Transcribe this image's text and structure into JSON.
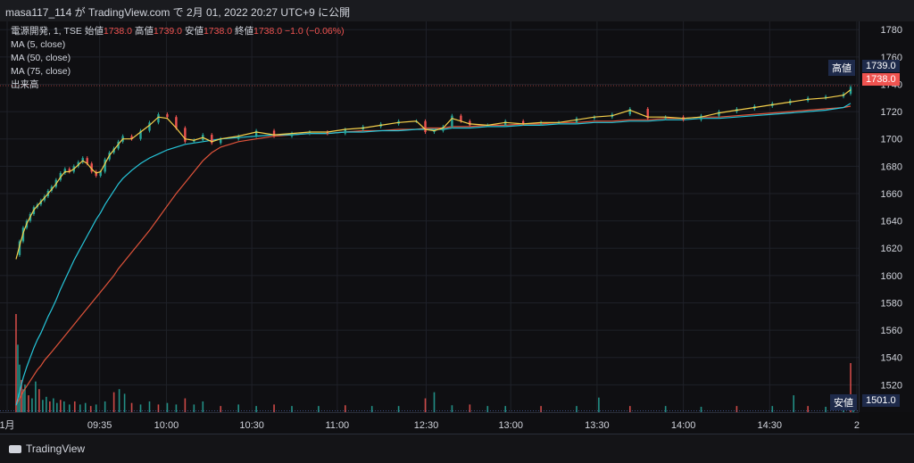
{
  "header": {
    "title": "masa117_114 が TradingView.com で 2月 01, 2022 20:27 UTC+9 に公開"
  },
  "legend": {
    "symbol": "電源開発, 1, TSE",
    "open_label": "始値",
    "open": "1738.0",
    "high_label": "高値",
    "high": "1739.0",
    "low_label": "安値",
    "low": "1738.0",
    "close_label": "終値",
    "close": "1738.0",
    "change": "−1.0 (−0.06%)",
    "ma5": "MA (5, close)",
    "ma50": "MA (50, close)",
    "ma75": "MA (75, close)",
    "volume": "出来高"
  },
  "right_labels": {
    "high_label": "高値",
    "high_value": "1739.0",
    "last_value": "1738.0",
    "low_label": "安値",
    "low_value": "1501.0"
  },
  "footer": {
    "brand": "TradingView"
  },
  "colors": {
    "up": "#26a69a",
    "down": "#ef5350",
    "ma5": "#f5d04b",
    "ma50": "#26c6da",
    "ma75": "#e0533a"
  },
  "chart_data": {
    "type": "line",
    "yticks": [
      1520,
      1540,
      1560,
      1580,
      1600,
      1620,
      1640,
      1660,
      1680,
      1700,
      1720,
      1740,
      1760,
      1780
    ],
    "ylim": [
      1500,
      1786
    ],
    "xlim": [
      0,
      950
    ],
    "xticks": [
      {
        "label": "1月",
        "t": 0
      },
      {
        "label": "09:35",
        "t": 104
      },
      {
        "label": "10:00",
        "t": 179
      },
      {
        "label": "10:30",
        "t": 275
      },
      {
        "label": "11:00",
        "t": 371
      },
      {
        "label": "12:30",
        "t": 471
      },
      {
        "label": "13:00",
        "t": 566
      },
      {
        "label": "13:30",
        "t": 663
      },
      {
        "label": "14:00",
        "t": 760
      },
      {
        "label": "14:30",
        "t": 857
      },
      {
        "label": "2",
        "t": 955
      }
    ],
    "price": {
      "t": [
        10,
        14,
        18,
        22,
        26,
        30,
        34,
        38,
        42,
        46,
        50,
        55,
        60,
        65,
        70,
        75,
        80,
        85,
        90,
        95,
        100,
        105,
        110,
        115,
        120,
        125,
        130,
        140,
        150,
        160,
        170,
        180,
        190,
        200,
        210,
        220,
        230,
        240,
        260,
        280,
        300,
        320,
        340,
        360,
        380,
        400,
        420,
        440,
        460,
        470,
        480,
        490,
        500,
        510,
        520,
        540,
        560,
        580,
        600,
        620,
        640,
        660,
        680,
        700,
        720,
        740,
        760,
        780,
        800,
        820,
        840,
        860,
        880,
        900,
        920,
        940,
        948
      ],
      "close": [
        1615,
        1625,
        1635,
        1640,
        1645,
        1650,
        1652,
        1655,
        1658,
        1662,
        1665,
        1670,
        1675,
        1678,
        1676,
        1680,
        1683,
        1686,
        1682,
        1676,
        1673,
        1676,
        1685,
        1690,
        1693,
        1698,
        1702,
        1700,
        1706,
        1712,
        1718,
        1716,
        1708,
        1698,
        1699,
        1703,
        1697,
        1700,
        1702,
        1706,
        1702,
        1704,
        1705,
        1704,
        1707,
        1709,
        1711,
        1713,
        1713,
        1705,
        1706,
        1709,
        1717,
        1713,
        1710,
        1710,
        1713,
        1711,
        1712,
        1712,
        1715,
        1716,
        1718,
        1722,
        1715,
        1716,
        1714,
        1717,
        1720,
        1722,
        1724,
        1726,
        1728,
        1730,
        1731,
        1733,
        1738
      ],
      "ma5": [
        1612,
        1622,
        1631,
        1638,
        1643,
        1648,
        1651,
        1654,
        1657,
        1660,
        1663,
        1667,
        1672,
        1676,
        1676,
        1678,
        1681,
        1684,
        1682,
        1678,
        1675,
        1676,
        1682,
        1688,
        1692,
        1696,
        1700,
        1700,
        1705,
        1710,
        1716,
        1715,
        1708,
        1700,
        1699,
        1701,
        1698,
        1700,
        1702,
        1705,
        1703,
        1704,
        1705,
        1705,
        1707,
        1708,
        1710,
        1712,
        1713,
        1707,
        1706,
        1708,
        1715,
        1713,
        1711,
        1710,
        1712,
        1711,
        1712,
        1712,
        1714,
        1716,
        1717,
        1721,
        1716,
        1716,
        1715,
        1716,
        1719,
        1721,
        1723,
        1725,
        1727,
        1729,
        1730,
        1732,
        1736
      ],
      "ma50": [
        1505,
        1515,
        1525,
        1533,
        1540,
        1547,
        1553,
        1558,
        1564,
        1570,
        1575,
        1582,
        1590,
        1597,
        1604,
        1611,
        1617,
        1623,
        1629,
        1635,
        1641,
        1646,
        1652,
        1657,
        1662,
        1667,
        1671,
        1677,
        1682,
        1686,
        1689,
        1692,
        1694,
        1696,
        1697,
        1698,
        1699,
        1700,
        1701,
        1702,
        1703,
        1703,
        1704,
        1704,
        1705,
        1705,
        1706,
        1706,
        1707,
        1707,
        1707,
        1707,
        1708,
        1708,
        1708,
        1709,
        1709,
        1710,
        1710,
        1711,
        1711,
        1712,
        1712,
        1713,
        1713,
        1714,
        1714,
        1715,
        1715,
        1716,
        1717,
        1718,
        1719,
        1720,
        1721,
        1723,
        1726
      ],
      "ma75": [
        1505,
        1510,
        1515,
        1519,
        1523,
        1527,
        1531,
        1534,
        1538,
        1541,
        1544,
        1548,
        1552,
        1556,
        1560,
        1564,
        1568,
        1572,
        1576,
        1580,
        1584,
        1588,
        1592,
        1596,
        1600,
        1605,
        1609,
        1617,
        1625,
        1633,
        1642,
        1651,
        1660,
        1668,
        1676,
        1684,
        1690,
        1694,
        1698,
        1700,
        1702,
        1703,
        1704,
        1704,
        1705,
        1706,
        1706,
        1707,
        1707,
        1708,
        1708,
        1708,
        1709,
        1709,
        1709,
        1710,
        1710,
        1711,
        1711,
        1712,
        1712,
        1713,
        1713,
        1714,
        1714,
        1715,
        1715,
        1716,
        1716,
        1717,
        1718,
        1719,
        1720,
        1721,
        1722,
        1723,
        1724
      ]
    },
    "volume": {
      "t": [
        10,
        12,
        14,
        16,
        18,
        20,
        24,
        28,
        32,
        36,
        40,
        44,
        48,
        52,
        56,
        60,
        64,
        70,
        76,
        82,
        88,
        94,
        100,
        110,
        120,
        126,
        132,
        140,
        150,
        160,
        170,
        180,
        190,
        200,
        210,
        220,
        240,
        260,
        280,
        300,
        320,
        350,
        380,
        410,
        440,
        470,
        480,
        500,
        520,
        540,
        560,
        600,
        640,
        665,
        700,
        740,
        780,
        820,
        860,
        884,
        900,
        920,
        940,
        948,
        951
      ],
      "v": [
        128,
        88,
        62,
        42,
        30,
        36,
        22,
        18,
        40,
        30,
        16,
        20,
        14,
        18,
        12,
        16,
        14,
        10,
        14,
        10,
        12,
        8,
        10,
        14,
        26,
        30,
        24,
        12,
        10,
        14,
        10,
        12,
        10,
        18,
        10,
        14,
        8,
        10,
        8,
        10,
        8,
        8,
        9,
        8,
        8,
        18,
        26,
        9,
        10,
        8,
        8,
        8,
        8,
        19,
        8,
        8,
        7,
        8,
        8,
        22,
        8,
        7,
        8,
        64,
        20
      ],
      "vmax": 128
    }
  }
}
